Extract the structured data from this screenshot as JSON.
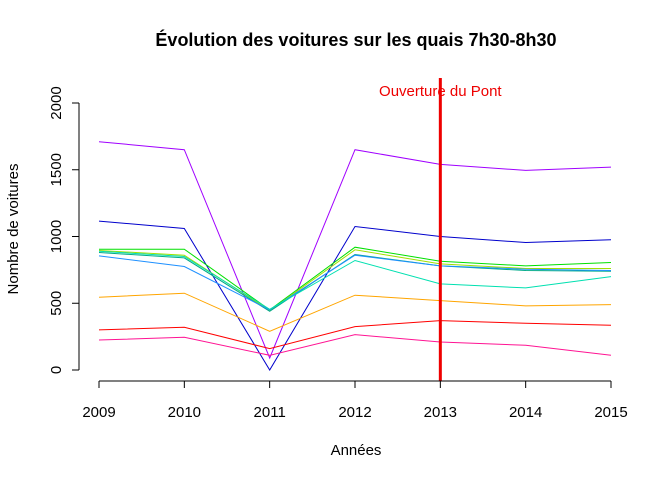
{
  "chart_data": {
    "type": "line",
    "title": "Évolution des voitures sur les quais 7h30-8h30",
    "xlabel": "Années",
    "ylabel": "Nombre de voitures",
    "x": [
      2009,
      2010,
      2011,
      2012,
      2013,
      2014,
      2015
    ],
    "xlim": [
      2009,
      2015
    ],
    "ylim": [
      0,
      2000
    ],
    "yticks": [
      0,
      500,
      1000,
      1500,
      2000
    ],
    "grid": false,
    "legend": "none",
    "series": [
      {
        "color": "#a000ff",
        "values": [
          1710,
          1650,
          90,
          1650,
          1540,
          1495,
          1520
        ]
      },
      {
        "color": "#0000cc",
        "values": [
          1115,
          1060,
          0,
          1075,
          1000,
          955,
          975
        ]
      },
      {
        "color": "#00e000",
        "values": [
          905,
          905,
          450,
          920,
          815,
          780,
          805
        ]
      },
      {
        "color": "#a0e000",
        "values": [
          895,
          860,
          445,
          900,
          795,
          760,
          760
        ]
      },
      {
        "color": "#00aa88",
        "values": [
          880,
          840,
          440,
          865,
          780,
          745,
          740
        ]
      },
      {
        "color": "#1e90ff",
        "values": [
          855,
          775,
          450,
          860,
          780,
          755,
          745
        ]
      },
      {
        "color": "#00e0b0",
        "values": [
          890,
          850,
          455,
          820,
          645,
          615,
          700
        ]
      },
      {
        "color": "#ffa500",
        "values": [
          545,
          575,
          290,
          560,
          520,
          480,
          490
        ]
      },
      {
        "color": "#ff0000",
        "values": [
          300,
          320,
          160,
          325,
          370,
          350,
          335
        ]
      },
      {
        "color": "#ff1493",
        "values": [
          225,
          245,
          110,
          265,
          210,
          185,
          110
        ]
      }
    ],
    "vline": {
      "x": 2013,
      "color": "#ee0000",
      "label": "Ouverture du Pont"
    }
  }
}
